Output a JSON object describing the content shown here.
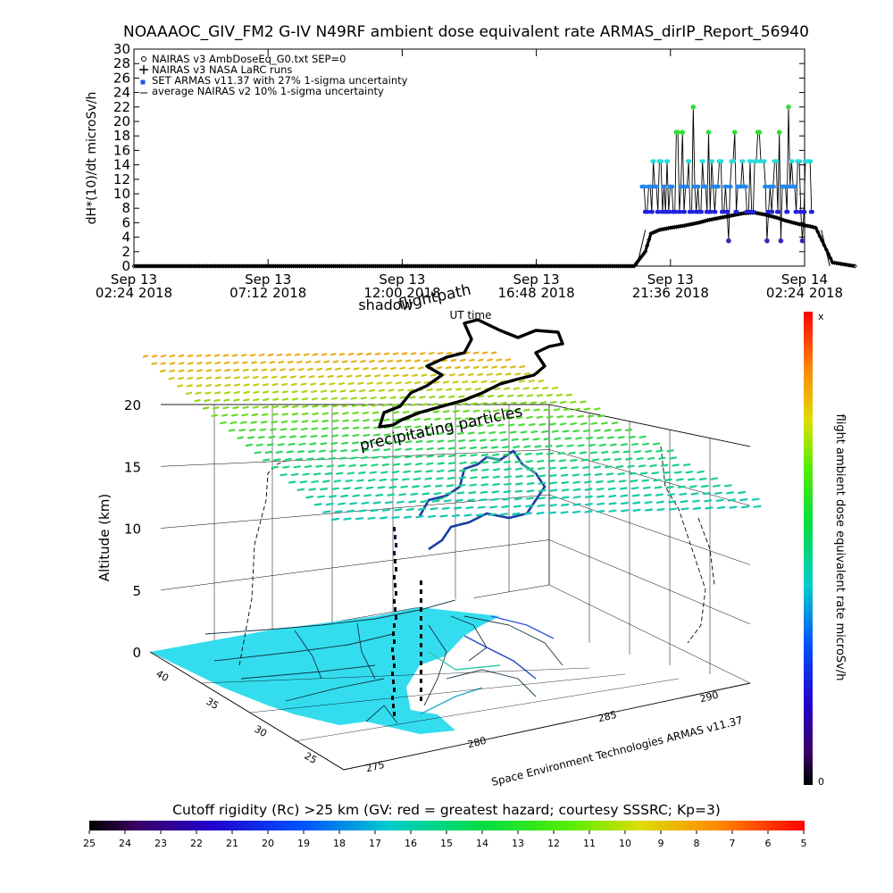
{
  "title": "NOAAAOC_GIV_FM2 G-IV    N49RF  ambient dose equivalent rate ARMAS_dirIP_Report_56940",
  "top_ylabel": "dH*(10)/dt microSv/h",
  "top_yticks": [
    "0",
    "2",
    "4",
    "6",
    "8",
    "10",
    "12",
    "14",
    "16",
    "18",
    "20",
    "22",
    "24",
    "26",
    "28",
    "30"
  ],
  "top_xticks": [
    {
      "l1": "Sep 13",
      "l2": "02:24 2018"
    },
    {
      "l1": "Sep 13",
      "l2": "07:12 2018"
    },
    {
      "l1": "Sep 13",
      "l2": "12:00 2018"
    },
    {
      "l1": "Sep 13",
      "l2": "16:48 2018"
    },
    {
      "l1": "Sep 13",
      "l2": "21:36 2018"
    },
    {
      "l1": "Sep 14",
      "l2": "02:24 2018"
    }
  ],
  "legend": [
    "NAIRAS v3 AmbDoseEq_G0.txt SEP=0",
    "NAIRAS v3 NASA LaRC runs",
    "SET ARMAS v11.37 with 27% 1-sigma uncertainty",
    "average NAIRAS v2 10% 1-sigma uncertainty"
  ],
  "overlay": {
    "flightpath": "flightpath",
    "shadow": "shadow",
    "ut_time": "UT time",
    "precip": "precipitating particles"
  },
  "bottom_ylabel": "Altitude (km)",
  "bottom_zticks": [
    "0",
    "5",
    "10",
    "15",
    "20"
  ],
  "lat_ticks": [
    "40",
    "35",
    "30",
    "25"
  ],
  "lon_ticks": [
    "275",
    "280",
    "285",
    "290"
  ],
  "credit": "Space Environment Technologies ARMAS v11.37",
  "colorbar_label": "flight ambient dose equivalent rate microSv/h",
  "colorbar_top": "x",
  "colorbar_bottom": "0",
  "rc_title": "Cutoff rigidity (Rc) >25 km (GV: red = greatest hazard; courtesy SSSRC; Kp=3)",
  "rc_ticks": [
    "25",
    "24",
    "23",
    "22",
    "21",
    "20",
    "19",
    "18",
    "17",
    "16",
    "15",
    "14",
    "13",
    "12",
    "11",
    "10",
    "9",
    "8",
    "7",
    "6",
    "5"
  ],
  "colors": {
    "armas_green": "#33dd33",
    "armas_cyan": "#22dddd",
    "armas_blue": "#2288ee",
    "armas_violet": "#4422bb",
    "nairas": "#000000",
    "sea": "#33ddee"
  },
  "chart_data": [
    {
      "type": "scatter",
      "title": "NOAAAOC_GIV_FM2 G-IV    N49RF  ambient dose equivalent rate ARMAS_dirIP_Report_56940",
      "ylabel": "dH*(10)/dt microSv/h",
      "xlabel": "",
      "x_range": [
        "2018-09-13 02:24",
        "2018-09-14 02:24"
      ],
      "ylim": [
        0,
        30
      ],
      "grid": false,
      "legend_position": "top-left",
      "series": [
        {
          "name": "NAIRAS v3 AmbDoseEq_G0.txt SEP=0",
          "x_hours": [
            0,
            2,
            4,
            6,
            8,
            10,
            12,
            14,
            16,
            17.9,
            18.3,
            18.5,
            18.8,
            19.2,
            19.7,
            20.2,
            20.6,
            21.0,
            21.4,
            21.8,
            22.2,
            22.6,
            23.0,
            23.3,
            23.6,
            23.9,
            24.2,
            24.4,
            25.0,
            25.8
          ],
          "values": [
            0,
            0,
            0,
            0,
            0,
            0,
            0,
            0,
            0,
            0,
            2,
            4.5,
            5,
            5.3,
            5.6,
            6,
            6.4,
            6.7,
            7,
            7.3,
            7.4,
            7.1,
            6.7,
            6.3,
            6,
            5.7,
            5.5,
            5.3,
            0.5,
            0
          ]
        },
        {
          "name": "SET ARMAS v11.37 with 27% 1-sigma uncertainty",
          "levels": [
            3.5,
            7.5,
            11,
            14.5,
            18.5,
            22
          ]
        }
      ]
    },
    {
      "type": "scatter",
      "title": "",
      "ylabel": "Altitude (km)",
      "xlabel": "",
      "zlim": [
        0,
        20
      ],
      "lat_range": [
        25,
        40
      ],
      "lon_range": [
        275,
        290
      ]
    }
  ]
}
